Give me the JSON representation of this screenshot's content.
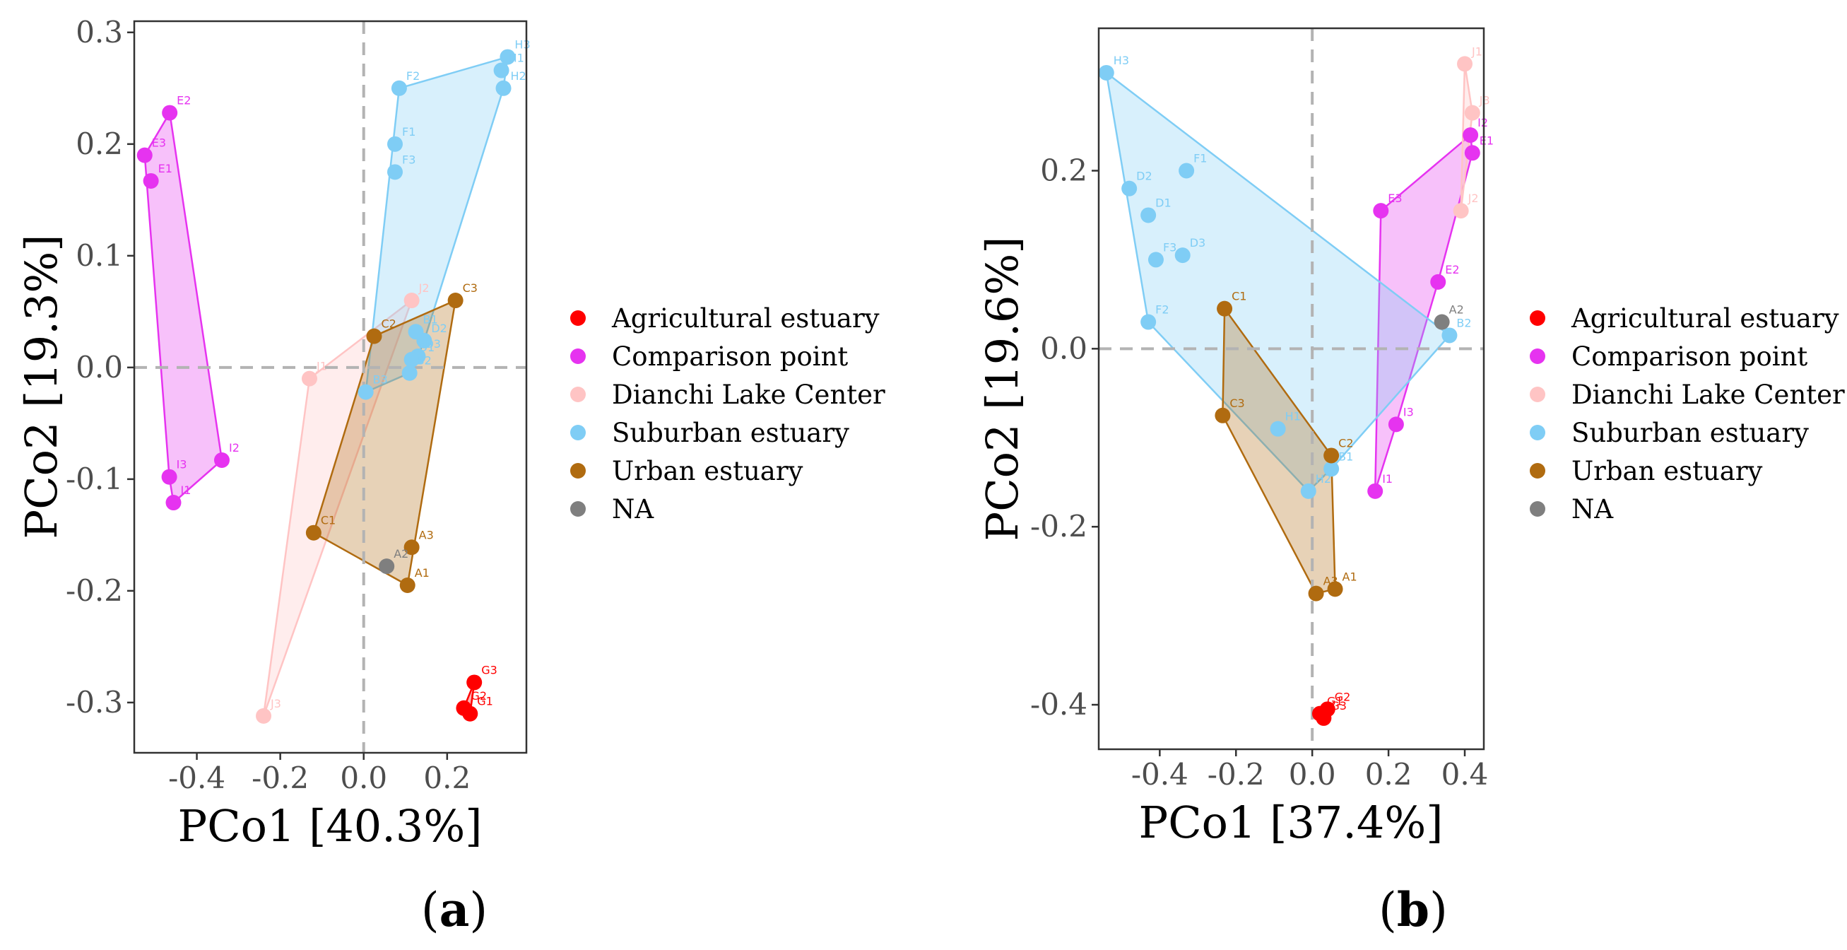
{
  "group_colors": {
    "Agricultural estuary": "#ff0000",
    "Comparison point": "#e633f0",
    "Dianchi Lake Center": "#ffc4c4",
    "Suburban estuary": "#7fcdf5",
    "Urban estuary": "#b06b10",
    "NA": "#7f7f7f"
  },
  "legend": {
    "items": [
      "Agricultural estuary",
      "Comparison point",
      "Dianchi Lake Center",
      "Suburban estuary",
      "Urban estuary",
      "NA"
    ]
  },
  "chart_data": [
    {
      "type": "scatter",
      "panel": "a",
      "panel_label": {
        "open": "(",
        "letter": "a",
        "close": ")"
      },
      "xlabel": "PCo1 [40.3%]",
      "ylabel": "PCo2 [19.3%]",
      "xlim": [
        -0.55,
        0.39
      ],
      "ylim": [
        -0.345,
        0.31
      ],
      "xticks": [
        -0.4,
        -0.2,
        0.0,
        0.2
      ],
      "xtick_labels": [
        "-0.4",
        "-0.2",
        "0.0",
        "0.2"
      ],
      "yticks": [
        -0.3,
        -0.2,
        -0.1,
        0.0,
        0.1,
        0.2,
        0.3
      ],
      "ytick_labels": [
        "-0.3",
        "-0.2",
        "-0.1",
        "0.0",
        "0.1",
        "0.2",
        "0.3"
      ],
      "reference_lines": {
        "x": 0,
        "y": 0
      },
      "points": [
        {
          "label": "G3",
          "x": 0.265,
          "y": -0.282,
          "group": "Agricultural estuary"
        },
        {
          "label": "G2",
          "x": 0.24,
          "y": -0.305,
          "group": "Agricultural estuary"
        },
        {
          "label": "G1",
          "x": 0.255,
          "y": -0.31,
          "group": "Agricultural estuary"
        },
        {
          "label": "E2",
          "x": -0.465,
          "y": 0.228,
          "group": "Comparison point"
        },
        {
          "label": "E3",
          "x": -0.525,
          "y": 0.19,
          "group": "Comparison point"
        },
        {
          "label": "E1",
          "x": -0.51,
          "y": 0.167,
          "group": "Comparison point"
        },
        {
          "label": "I2",
          "x": -0.34,
          "y": -0.083,
          "group": "Comparison point"
        },
        {
          "label": "I3",
          "x": -0.466,
          "y": -0.098,
          "group": "Comparison point"
        },
        {
          "label": "I1",
          "x": -0.456,
          "y": -0.121,
          "group": "Comparison point"
        },
        {
          "label": "J2",
          "x": 0.115,
          "y": 0.06,
          "group": "Dianchi Lake Center"
        },
        {
          "label": "J1",
          "x": -0.13,
          "y": -0.01,
          "group": "Dianchi Lake Center"
        },
        {
          "label": "J3",
          "x": -0.24,
          "y": -0.312,
          "group": "Dianchi Lake Center"
        },
        {
          "label": "H3",
          "x": 0.345,
          "y": 0.278,
          "group": "Suburban estuary"
        },
        {
          "label": "H1",
          "x": 0.33,
          "y": 0.266,
          "group": "Suburban estuary"
        },
        {
          "label": "H2",
          "x": 0.335,
          "y": 0.25,
          "group": "Suburban estuary"
        },
        {
          "label": "F2",
          "x": 0.085,
          "y": 0.25,
          "group": "Suburban estuary"
        },
        {
          "label": "F1",
          "x": 0.075,
          "y": 0.2,
          "group": "Suburban estuary"
        },
        {
          "label": "F3",
          "x": 0.075,
          "y": 0.175,
          "group": "Suburban estuary"
        },
        {
          "label": "B1",
          "x": 0.125,
          "y": 0.032,
          "group": "Suburban estuary"
        },
        {
          "label": "D2",
          "x": 0.145,
          "y": 0.024,
          "group": "Suburban estuary"
        },
        {
          "label": "D3",
          "x": 0.13,
          "y": 0.01,
          "group": "Suburban estuary"
        },
        {
          "label": "D1",
          "x": 0.115,
          "y": 0.007,
          "group": "Suburban estuary"
        },
        {
          "label": "B2",
          "x": 0.11,
          "y": -0.005,
          "group": "Suburban estuary"
        },
        {
          "label": "B3",
          "x": 0.005,
          "y": -0.022,
          "group": "Suburban estuary"
        },
        {
          "label": "C3",
          "x": 0.22,
          "y": 0.06,
          "group": "Urban estuary"
        },
        {
          "label": "C2",
          "x": 0.025,
          "y": 0.028,
          "group": "Urban estuary"
        },
        {
          "label": "C1",
          "x": -0.12,
          "y": -0.148,
          "group": "Urban estuary"
        },
        {
          "label": "A3",
          "x": 0.115,
          "y": -0.161,
          "group": "Urban estuary"
        },
        {
          "label": "A1",
          "x": 0.105,
          "y": -0.195,
          "group": "Urban estuary"
        },
        {
          "label": "A2",
          "x": 0.055,
          "y": -0.178,
          "group": "NA"
        }
      ]
    },
    {
      "type": "scatter",
      "panel": "b",
      "panel_label": {
        "open": "(",
        "letter": "b",
        "close": ")"
      },
      "xlabel": "PCo1 [37.4%]",
      "ylabel": "PCo2 [19.6%]",
      "xlim": [
        -0.56,
        0.45
      ],
      "ylim": [
        -0.45,
        0.36
      ],
      "xticks": [
        -0.4,
        -0.2,
        0.0,
        0.2,
        0.4
      ],
      "xtick_labels": [
        "-0.4",
        "-0.2",
        "0.0",
        "0.2",
        "0.4"
      ],
      "yticks": [
        -0.4,
        -0.2,
        0.0,
        0.2
      ],
      "ytick_labels": [
        "-0.4",
        "-0.2",
        "0.0",
        "0.2"
      ],
      "reference_lines": {
        "x": 0,
        "y": 0
      },
      "points": [
        {
          "label": "G2",
          "x": 0.04,
          "y": -0.405,
          "group": "Agricultural estuary"
        },
        {
          "label": "G1",
          "x": 0.02,
          "y": -0.41,
          "group": "Agricultural estuary"
        },
        {
          "label": "G3",
          "x": 0.03,
          "y": -0.415,
          "group": "Agricultural estuary"
        },
        {
          "label": "E3",
          "x": 0.18,
          "y": 0.155,
          "group": "Comparison point"
        },
        {
          "label": "I2",
          "x": 0.415,
          "y": 0.24,
          "group": "Comparison point"
        },
        {
          "label": "E1",
          "x": 0.42,
          "y": 0.22,
          "group": "Comparison point"
        },
        {
          "label": "E2",
          "x": 0.33,
          "y": 0.075,
          "group": "Comparison point"
        },
        {
          "label": "I3",
          "x": 0.22,
          "y": -0.085,
          "group": "Comparison point"
        },
        {
          "label": "I1",
          "x": 0.165,
          "y": -0.16,
          "group": "Comparison point"
        },
        {
          "label": "J1",
          "x": 0.4,
          "y": 0.32,
          "group": "Dianchi Lake Center"
        },
        {
          "label": "J3",
          "x": 0.42,
          "y": 0.265,
          "group": "Dianchi Lake Center"
        },
        {
          "label": "J2",
          "x": 0.39,
          "y": 0.155,
          "group": "Dianchi Lake Center"
        },
        {
          "label": "H3",
          "x": -0.54,
          "y": 0.31,
          "group": "Suburban estuary"
        },
        {
          "label": "F1",
          "x": -0.33,
          "y": 0.2,
          "group": "Suburban estuary"
        },
        {
          "label": "D2",
          "x": -0.48,
          "y": 0.18,
          "group": "Suburban estuary"
        },
        {
          "label": "D1",
          "x": -0.43,
          "y": 0.15,
          "group": "Suburban estuary"
        },
        {
          "label": "D3",
          "x": -0.34,
          "y": 0.105,
          "group": "Suburban estuary"
        },
        {
          "label": "F3",
          "x": -0.41,
          "y": 0.1,
          "group": "Suburban estuary"
        },
        {
          "label": "F2",
          "x": -0.43,
          "y": 0.03,
          "group": "Suburban estuary"
        },
        {
          "label": "B2",
          "x": 0.36,
          "y": 0.015,
          "group": "Suburban estuary"
        },
        {
          "label": "H1",
          "x": -0.09,
          "y": -0.09,
          "group": "Suburban estuary"
        },
        {
          "label": "B1",
          "x": 0.05,
          "y": -0.135,
          "group": "Suburban estuary"
        },
        {
          "label": "H2",
          "x": -0.01,
          "y": -0.16,
          "group": "Suburban estuary"
        },
        {
          "label": "C1",
          "x": -0.23,
          "y": 0.045,
          "group": "Urban estuary"
        },
        {
          "label": "C3",
          "x": -0.235,
          "y": -0.075,
          "group": "Urban estuary"
        },
        {
          "label": "C2",
          "x": 0.05,
          "y": -0.12,
          "group": "Urban estuary"
        },
        {
          "label": "A1",
          "x": 0.06,
          "y": -0.27,
          "group": "Urban estuary"
        },
        {
          "label": "A3",
          "x": 0.01,
          "y": -0.275,
          "group": "Urban estuary"
        },
        {
          "label": "A2",
          "x": 0.34,
          "y": 0.03,
          "group": "NA"
        }
      ]
    }
  ]
}
